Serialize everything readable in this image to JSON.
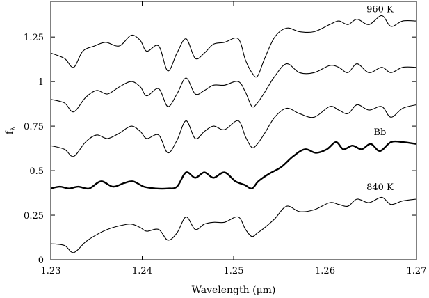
{
  "chart_data": {
    "type": "line",
    "title": "",
    "xlabel": "Wavelength (μm)",
    "ylabel": "fλ",
    "xlim": [
      1.23,
      1.27
    ],
    "ylim": [
      0,
      1.45
    ],
    "xticks": [
      1.23,
      1.24,
      1.25,
      1.26,
      1.27
    ],
    "xtick_labels": [
      "1.23",
      "1.24",
      "1.25",
      "1.26",
      "1.27"
    ],
    "yticks": [
      0,
      0.25,
      0.5,
      0.75,
      1,
      1.25
    ],
    "ytick_labels": [
      "0",
      "0.25",
      "0.5",
      "0.75",
      "1",
      "1.25"
    ],
    "grid": false,
    "series": [
      {
        "name": "960 K",
        "bold": false,
        "x": [
          1.23,
          1.2315,
          1.2325,
          1.2335,
          1.2348,
          1.236,
          1.2375,
          1.2388,
          1.2398,
          1.2405,
          1.2418,
          1.2428,
          1.2438,
          1.2448,
          1.2458,
          1.2468,
          1.2478,
          1.249,
          1.2505,
          1.2513,
          1.252,
          1.2526,
          1.2534,
          1.2545,
          1.2558,
          1.2572,
          1.2588,
          1.2605,
          1.2615,
          1.2625,
          1.2635,
          1.2648,
          1.2662,
          1.2672,
          1.2685,
          1.27
        ],
        "y": [
          1.16,
          1.13,
          1.08,
          1.17,
          1.2,
          1.22,
          1.2,
          1.26,
          1.23,
          1.17,
          1.2,
          1.06,
          1.16,
          1.24,
          1.13,
          1.16,
          1.21,
          1.22,
          1.24,
          1.12,
          1.05,
          1.03,
          1.13,
          1.25,
          1.3,
          1.28,
          1.28,
          1.32,
          1.34,
          1.32,
          1.35,
          1.32,
          1.37,
          1.31,
          1.34,
          1.34
        ]
      },
      {
        "name": "",
        "bold": false,
        "x": [
          1.23,
          1.2315,
          1.2325,
          1.2338,
          1.235,
          1.2362,
          1.2375,
          1.2388,
          1.2398,
          1.2405,
          1.2418,
          1.2428,
          1.2438,
          1.2448,
          1.2458,
          1.2468,
          1.2478,
          1.249,
          1.2505,
          1.2513,
          1.252,
          1.2526,
          1.2534,
          1.2545,
          1.2558,
          1.2572,
          1.2588,
          1.2605,
          1.2615,
          1.2625,
          1.2635,
          1.2648,
          1.2662,
          1.2672,
          1.2685,
          1.27
        ],
        "y": [
          0.9,
          0.88,
          0.83,
          0.91,
          0.95,
          0.93,
          0.97,
          1.0,
          0.97,
          0.92,
          0.96,
          0.86,
          0.93,
          1.02,
          0.93,
          0.95,
          0.98,
          0.98,
          1.0,
          0.94,
          0.86,
          0.88,
          0.94,
          1.03,
          1.1,
          1.05,
          1.05,
          1.09,
          1.08,
          1.05,
          1.1,
          1.05,
          1.08,
          1.05,
          1.08,
          1.08
        ]
      },
      {
        "name": "",
        "bold": false,
        "x": [
          1.23,
          1.2315,
          1.2325,
          1.2338,
          1.235,
          1.2362,
          1.2375,
          1.2388,
          1.2398,
          1.2405,
          1.2418,
          1.2428,
          1.2438,
          1.2448,
          1.2458,
          1.2468,
          1.2478,
          1.249,
          1.2505,
          1.2513,
          1.252,
          1.2526,
          1.2534,
          1.2545,
          1.2558,
          1.2572,
          1.2588,
          1.2605,
          1.2615,
          1.2625,
          1.2635,
          1.2648,
          1.2662,
          1.2672,
          1.2685,
          1.27
        ],
        "y": [
          0.64,
          0.62,
          0.58,
          0.66,
          0.7,
          0.68,
          0.71,
          0.75,
          0.72,
          0.68,
          0.7,
          0.6,
          0.67,
          0.78,
          0.68,
          0.72,
          0.75,
          0.73,
          0.78,
          0.69,
          0.63,
          0.65,
          0.71,
          0.8,
          0.85,
          0.82,
          0.8,
          0.86,
          0.84,
          0.82,
          0.87,
          0.84,
          0.86,
          0.8,
          0.85,
          0.87
        ]
      },
      {
        "name": "Bb",
        "bold": true,
        "x": [
          1.23,
          1.231,
          1.232,
          1.233,
          1.2342,
          1.2355,
          1.2368,
          1.238,
          1.239,
          1.2402,
          1.2415,
          1.2428,
          1.2438,
          1.2448,
          1.2458,
          1.2468,
          1.2478,
          1.249,
          1.2502,
          1.2512,
          1.252,
          1.2527,
          1.2538,
          1.2552,
          1.2565,
          1.2578,
          1.259,
          1.2602,
          1.2612,
          1.262,
          1.263,
          1.264,
          1.265,
          1.266,
          1.2672,
          1.2685,
          1.27
        ],
        "y": [
          0.4,
          0.41,
          0.4,
          0.41,
          0.4,
          0.44,
          0.41,
          0.43,
          0.44,
          0.41,
          0.4,
          0.4,
          0.41,
          0.49,
          0.46,
          0.49,
          0.46,
          0.49,
          0.44,
          0.42,
          0.4,
          0.44,
          0.48,
          0.52,
          0.58,
          0.62,
          0.6,
          0.62,
          0.66,
          0.62,
          0.64,
          0.62,
          0.65,
          0.61,
          0.66,
          0.66,
          0.65
        ]
      },
      {
        "name": "840 K",
        "bold": false,
        "x": [
          1.23,
          1.2315,
          1.2325,
          1.2338,
          1.235,
          1.2362,
          1.2375,
          1.2388,
          1.2398,
          1.2405,
          1.2418,
          1.2428,
          1.2438,
          1.2448,
          1.2458,
          1.2468,
          1.2478,
          1.249,
          1.2505,
          1.2513,
          1.252,
          1.2526,
          1.2534,
          1.2545,
          1.2558,
          1.2572,
          1.2588,
          1.2605,
          1.2615,
          1.2625,
          1.2635,
          1.2648,
          1.2662,
          1.2672,
          1.2685,
          1.27
        ],
        "y": [
          0.09,
          0.08,
          0.04,
          0.1,
          0.14,
          0.17,
          0.19,
          0.2,
          0.18,
          0.16,
          0.17,
          0.11,
          0.15,
          0.24,
          0.17,
          0.2,
          0.21,
          0.21,
          0.24,
          0.17,
          0.13,
          0.15,
          0.18,
          0.23,
          0.3,
          0.27,
          0.28,
          0.32,
          0.31,
          0.3,
          0.34,
          0.32,
          0.35,
          0.31,
          0.33,
          0.34
        ]
      }
    ],
    "labels": [
      {
        "text": "960 K",
        "x": 1.266,
        "y": 1.39
      },
      {
        "text": "Bb",
        "x": 1.266,
        "y": 0.7
      },
      {
        "text": "840 K",
        "x": 1.266,
        "y": 0.39
      }
    ]
  }
}
